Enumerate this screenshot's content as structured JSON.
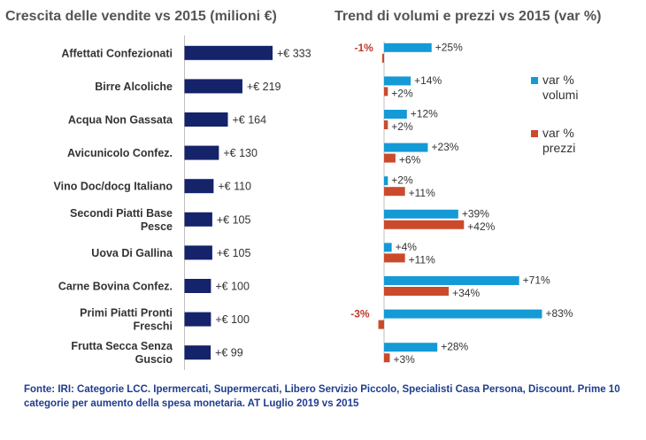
{
  "left_title": "Crescita delle vendite vs 2015 (milioni €)",
  "right_title": "Trend di volumi e prezzi vs 2015 (var %)",
  "footnote": "Fonte: IRI:  Categorie LCC. Ipermercati, Supermercati, Libero Servizio Piccolo, Specialisti Casa Persona, Discount.  Prime 10 categorie per aumento della spesa monetaria. AT Luglio 2019 vs 2015",
  "colors": {
    "growth_bar": "#15236b",
    "volumi": "#149ad6",
    "prezzi": "#cc4a2c",
    "text": "#333333",
    "negative_label": "#c0392b",
    "footnote": "#1f3c8f",
    "title": "#555555"
  },
  "chart_data": [
    {
      "type": "bar",
      "orientation": "horizontal",
      "title": "Crescita delle vendite vs 2015 (milioni €)",
      "categories": [
        [
          "Affettati Confezionati"
        ],
        [
          "Birre Alcoliche"
        ],
        [
          "Acqua Non Gassata"
        ],
        [
          "Avicunicolo Confez."
        ],
        [
          "Vino Doc/docg Italiano"
        ],
        [
          "Secondi Piatti Base",
          "Pesce"
        ],
        [
          "Uova Di Gallina"
        ],
        [
          "Carne Bovina Confez."
        ],
        [
          "Primi Piatti Pronti",
          "Freschi"
        ],
        [
          "Frutta Secca Senza",
          "Guscio"
        ]
      ],
      "values": [
        333,
        219,
        164,
        130,
        110,
        105,
        105,
        100,
        100,
        99
      ],
      "data_labels": [
        "+€ 333",
        "+€ 219",
        "+€ 164",
        "+€ 130",
        "+€ 110",
        "+€ 105",
        "+€ 105",
        "+€ 100",
        "+€ 100",
        "+€ 99"
      ],
      "xlim": [
        0,
        333
      ]
    },
    {
      "type": "bar",
      "orientation": "horizontal",
      "title": "Trend di volumi e prezzi vs 2015 (var %)",
      "series": [
        {
          "name": "var % volumi",
          "legend_lines": [
            "var %",
            "volumi"
          ],
          "values": [
            25,
            14,
            12,
            23,
            2,
            39,
            4,
            71,
            83,
            28
          ],
          "data_labels": [
            "+25%",
            "+14%",
            "+12%",
            "+23%",
            "+2%",
            "+39%",
            "+4%",
            "+71%",
            "+83%",
            "+28%"
          ]
        },
        {
          "name": "var % prezzi",
          "legend_lines": [
            "var %",
            "prezzi"
          ],
          "values": [
            -1,
            2,
            2,
            6,
            11,
            42,
            11,
            34,
            -3,
            3
          ],
          "data_labels": [
            "-1%",
            "+2%",
            "+2%",
            "+6%",
            "+11%",
            "+42%",
            "+11%",
            "+34%",
            "-3%",
            "+3%"
          ]
        }
      ],
      "xlim": [
        -5,
        83
      ],
      "legend_position": "right"
    }
  ]
}
